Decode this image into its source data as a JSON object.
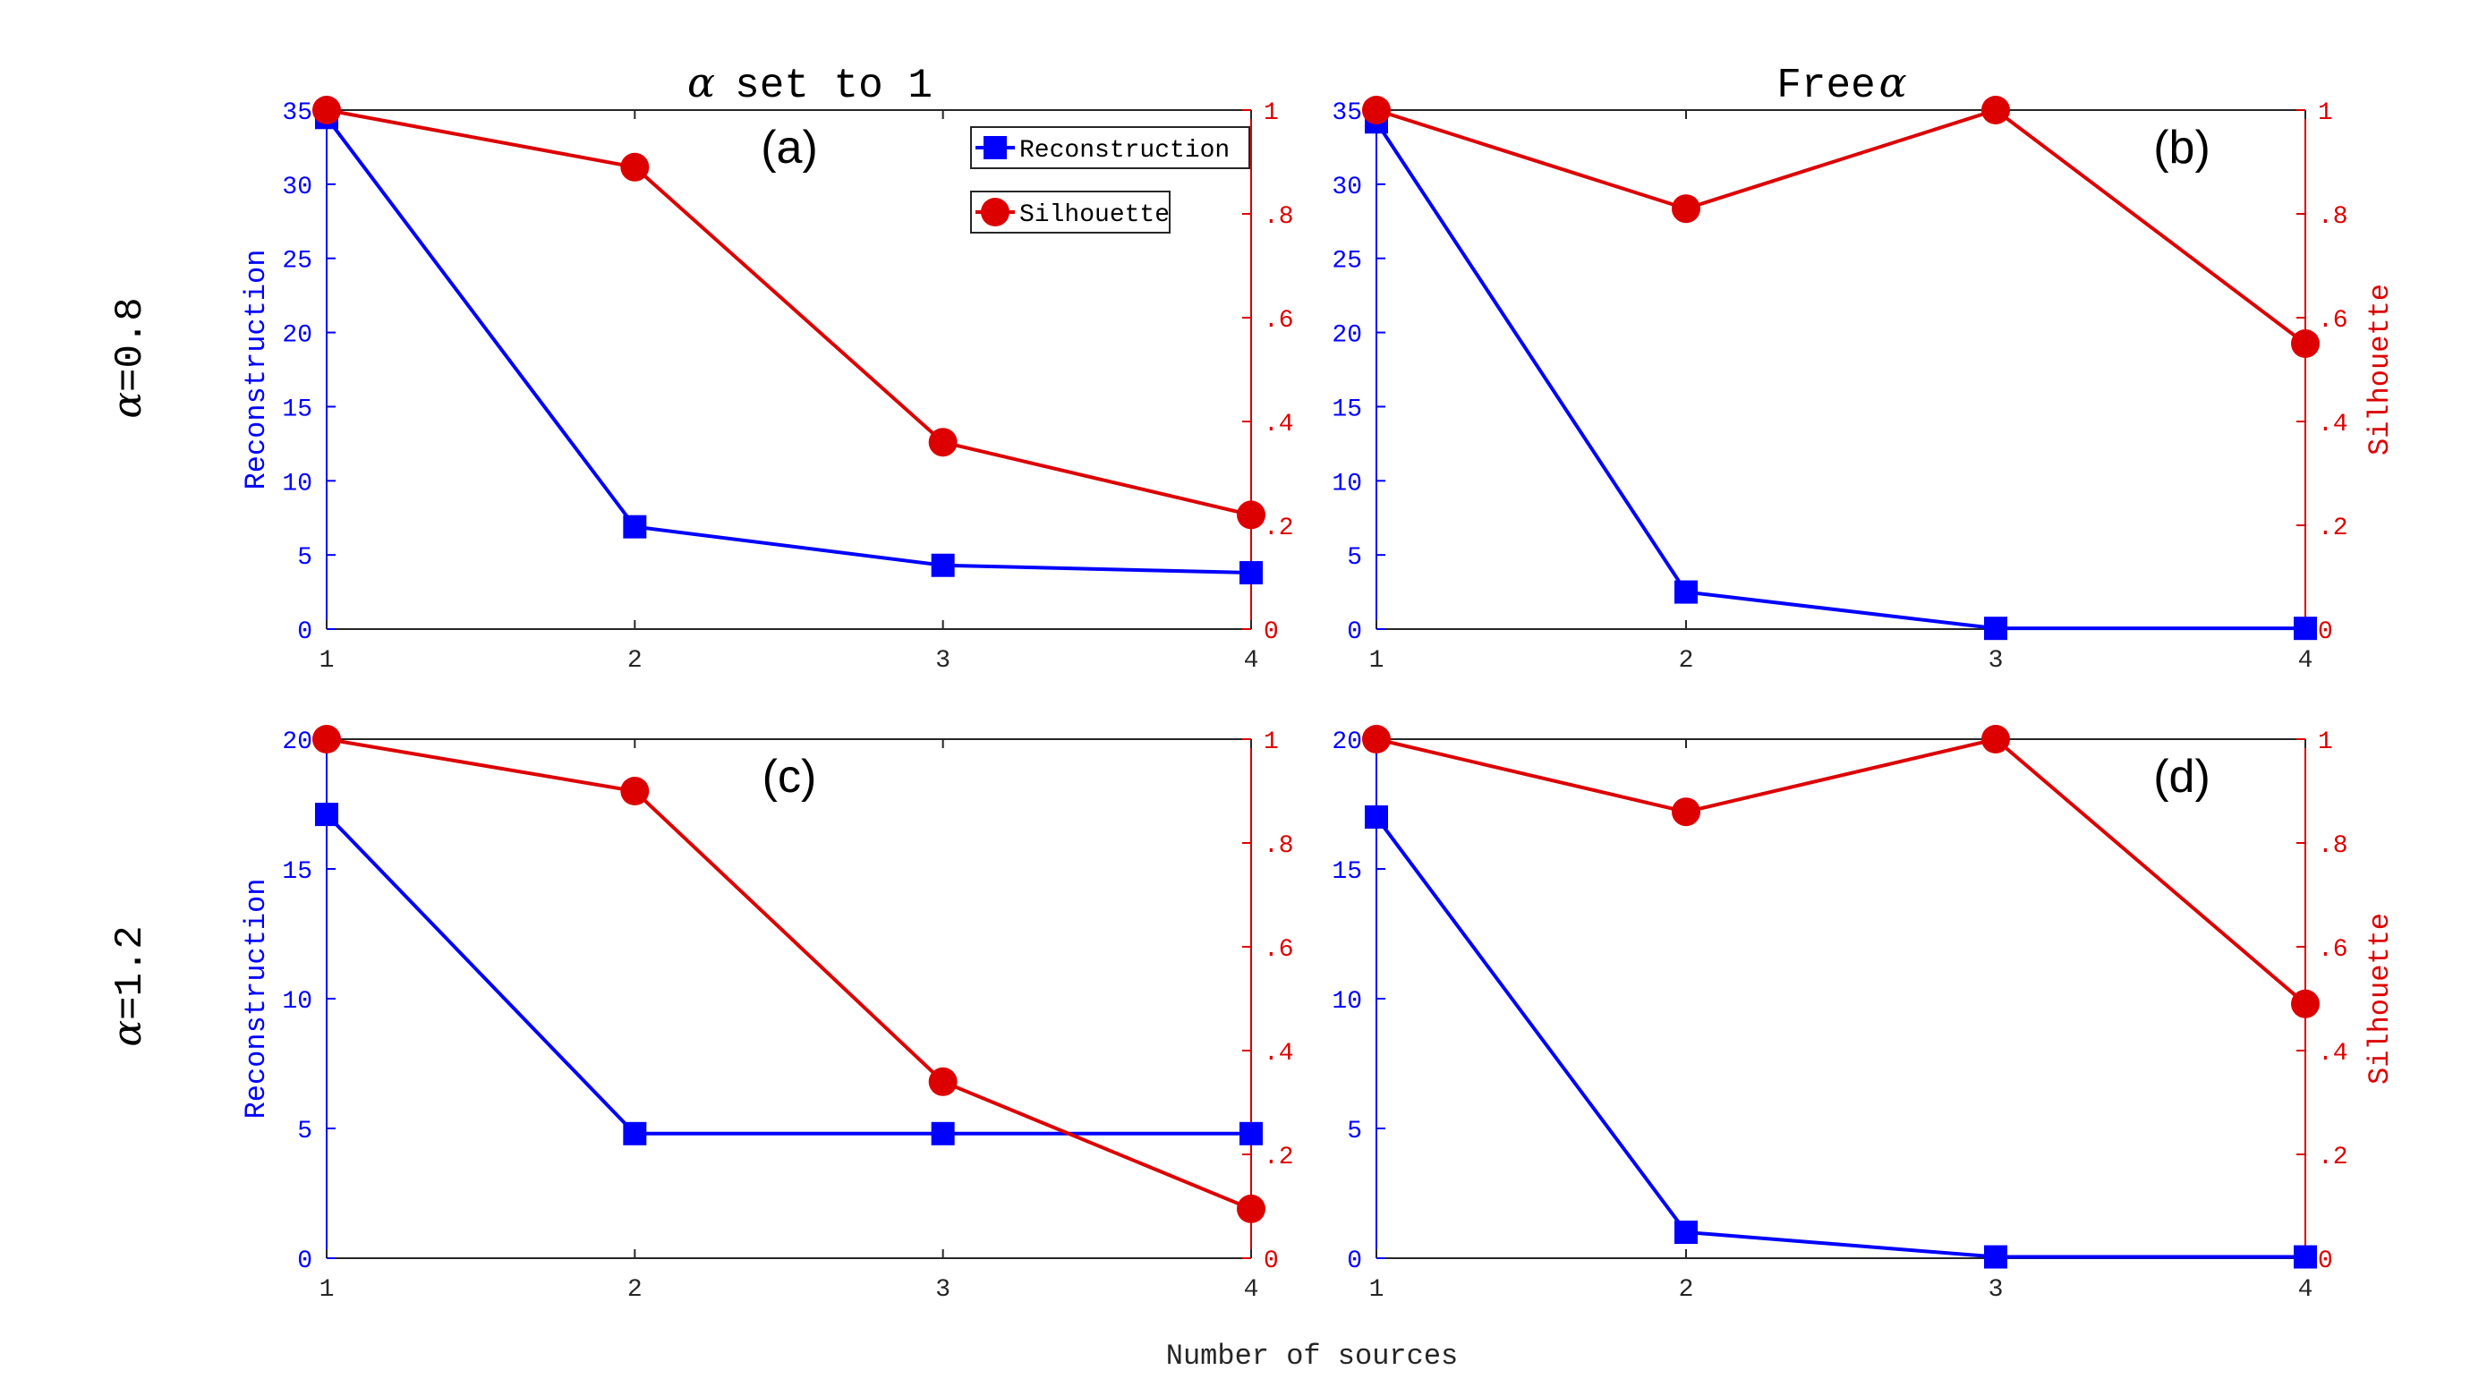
{
  "figure": {
    "xlabel": "Number of sources",
    "col_titles": [
      {
        "symbol": "α",
        "text": "set to 1",
        "symbol_first": true
      },
      {
        "symbol": "α",
        "text": "Free",
        "symbol_first": false
      }
    ],
    "row_labels": [
      {
        "symbol": "α",
        "text": "=0.8"
      },
      {
        "symbol": "α",
        "text": "=1.2"
      }
    ],
    "legend": {
      "items": [
        "Reconstruction",
        "Silhouette"
      ]
    },
    "colors": {
      "recon": "#0000ff",
      "silh": "#dd0000",
      "axis": "#262626"
    }
  },
  "chart_data": [
    {
      "type": "line",
      "panel": "(a)",
      "title": "(a)",
      "x": [
        1,
        2,
        3,
        4
      ],
      "xticks": [
        "1",
        "2",
        "3",
        "4"
      ],
      "xlim": [
        1,
        4
      ],
      "ylabel_left": "Reconstruction",
      "ylabel_right": "",
      "ylim_left": [
        0,
        35
      ],
      "yticks_left": [
        0,
        5,
        10,
        15,
        20,
        25,
        30,
        35
      ],
      "ylim_right": [
        0,
        1
      ],
      "yticks_right": [
        0,
        0.2,
        0.4,
        0.6,
        0.8,
        1
      ],
      "series": [
        {
          "name": "Reconstruction",
          "axis": "left",
          "marker": "square",
          "values": [
            34.5,
            6.9,
            4.3,
            3.8
          ]
        },
        {
          "name": "Silhouette",
          "axis": "right",
          "marker": "circle",
          "values": [
            1.0,
            0.89,
            0.36,
            0.22
          ]
        }
      ],
      "legend": true
    },
    {
      "type": "line",
      "panel": "(b)",
      "title": "(b)",
      "x": [
        1,
        2,
        3,
        4
      ],
      "xticks": [
        "1",
        "2",
        "3",
        "4"
      ],
      "xlim": [
        1,
        4
      ],
      "ylabel_left": "",
      "ylabel_right": "Silhouette",
      "ylim_left": [
        0,
        35
      ],
      "yticks_left": [
        0,
        5,
        10,
        15,
        20,
        25,
        30,
        35
      ],
      "ylim_right": [
        0,
        1
      ],
      "yticks_right": [
        0,
        0.2,
        0.4,
        0.6,
        0.8,
        1
      ],
      "series": [
        {
          "name": "Reconstruction",
          "axis": "left",
          "marker": "square",
          "values": [
            34.2,
            2.5,
            0.05,
            0.05
          ]
        },
        {
          "name": "Silhouette",
          "axis": "right",
          "marker": "circle",
          "values": [
            1.0,
            0.81,
            1.0,
            0.55
          ]
        }
      ],
      "legend": false
    },
    {
      "type": "line",
      "panel": "(c)",
      "title": "(c)",
      "x": [
        1,
        2,
        3,
        4
      ],
      "xticks": [
        "1",
        "2",
        "3",
        "4"
      ],
      "xlim": [
        1,
        4
      ],
      "ylabel_left": "Reconstruction",
      "ylabel_right": "",
      "ylim_left": [
        0,
        20
      ],
      "yticks_left": [
        0,
        5,
        10,
        15,
        20
      ],
      "ylim_right": [
        0,
        1
      ],
      "yticks_right": [
        0,
        0.2,
        0.4,
        0.6,
        0.8,
        1
      ],
      "series": [
        {
          "name": "Reconstruction",
          "axis": "left",
          "marker": "square",
          "values": [
            17.1,
            4.8,
            4.8,
            4.8
          ]
        },
        {
          "name": "Silhouette",
          "axis": "right",
          "marker": "circle",
          "values": [
            1.0,
            0.9,
            0.34,
            0.095
          ]
        }
      ],
      "legend": false
    },
    {
      "type": "line",
      "panel": "(d)",
      "title": "(d)",
      "x": [
        1,
        2,
        3,
        4
      ],
      "xticks": [
        "1",
        "2",
        "3",
        "4"
      ],
      "xlim": [
        1,
        4
      ],
      "ylabel_left": "",
      "ylabel_right": "Silhouette",
      "ylim_left": [
        0,
        20
      ],
      "yticks_left": [
        0,
        5,
        10,
        15,
        20
      ],
      "ylim_right": [
        0,
        1
      ],
      "yticks_right": [
        0,
        0.2,
        0.4,
        0.6,
        0.8,
        1
      ],
      "series": [
        {
          "name": "Reconstruction",
          "axis": "left",
          "marker": "square",
          "values": [
            17.0,
            1.0,
            0.05,
            0.05
          ]
        },
        {
          "name": "Silhouette",
          "axis": "right",
          "marker": "circle",
          "values": [
            1.0,
            0.86,
            1.0,
            0.49
          ]
        }
      ],
      "legend": false
    }
  ]
}
